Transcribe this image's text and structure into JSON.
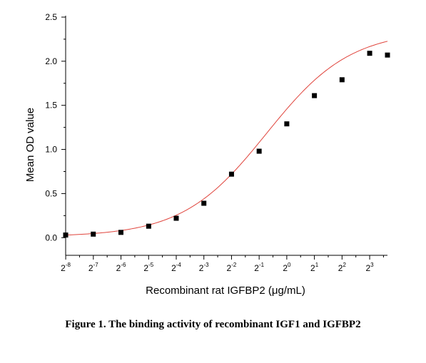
{
  "caption": "Figure 1. The binding activity of recombinant IGF1 and IGFBP2",
  "chart_data": {
    "type": "scatter",
    "xlabel": "Recombinant rat IGFBP2 (μg/mL)",
    "ylabel": "Mean OD value",
    "x_scale": "log2",
    "xlim": [
      0.0039,
      12.5
    ],
    "ylim": [
      -0.2,
      2.5
    ],
    "x_ticks": [
      {
        "value": 0.00390625,
        "base": "2",
        "exp": "-8"
      },
      {
        "value": 0.0078125,
        "base": "2",
        "exp": "-7"
      },
      {
        "value": 0.015625,
        "base": "2",
        "exp": "-6"
      },
      {
        "value": 0.03125,
        "base": "2",
        "exp": "-5"
      },
      {
        "value": 0.0625,
        "base": "2",
        "exp": "-4"
      },
      {
        "value": 0.125,
        "base": "2",
        "exp": "-3"
      },
      {
        "value": 0.25,
        "base": "2",
        "exp": "-2"
      },
      {
        "value": 0.5,
        "base": "2",
        "exp": "-1"
      },
      {
        "value": 1,
        "base": "2",
        "exp": "0"
      },
      {
        "value": 2,
        "base": "2",
        "exp": "1"
      },
      {
        "value": 4,
        "base": "2",
        "exp": "2"
      },
      {
        "value": 8,
        "base": "2",
        "exp": "3"
      }
    ],
    "y_ticks": [
      {
        "value": 0.0,
        "label": "0.0"
      },
      {
        "value": 0.5,
        "label": "0.5"
      },
      {
        "value": 1.0,
        "label": "1.0"
      },
      {
        "value": 1.5,
        "label": "1.5"
      },
      {
        "value": 2.0,
        "label": "2.0"
      },
      {
        "value": 2.5,
        "label": "2.5"
      }
    ],
    "points": [
      {
        "x": 0.0039,
        "y": 0.03
      },
      {
        "x": 0.0078,
        "y": 0.04
      },
      {
        "x": 0.0156,
        "y": 0.06
      },
      {
        "x": 0.0313,
        "y": 0.13
      },
      {
        "x": 0.0625,
        "y": 0.22
      },
      {
        "x": 0.125,
        "y": 0.39
      },
      {
        "x": 0.25,
        "y": 0.72
      },
      {
        "x": 0.5,
        "y": 0.98
      },
      {
        "x": 1.0,
        "y": 1.29
      },
      {
        "x": 2.0,
        "y": 1.61
      },
      {
        "x": 4.0,
        "y": 1.79
      },
      {
        "x": 8.0,
        "y": 2.09
      },
      {
        "x": 12.5,
        "y": 2.07
      }
    ],
    "curve": {
      "type": "4PL",
      "bottom": 0.01,
      "top": 2.35,
      "ec50": 0.6,
      "hill": 0.95,
      "color": "#e0443c"
    },
    "marker_color": "#000000",
    "grid": false
  }
}
